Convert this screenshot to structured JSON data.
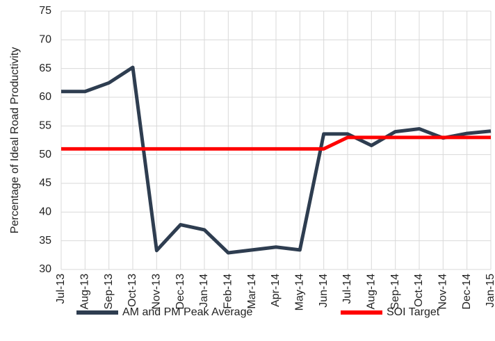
{
  "chart_data": {
    "type": "line",
    "y_label": "Percentage of Ideal Road Productivity",
    "categories": [
      "Jul-13",
      "Aug-13",
      "Sep-13",
      "Oct-13",
      "Nov-13",
      "Dec-13",
      "Jan-14",
      "Feb-14",
      "Mar-14",
      "Apr-14",
      "May-14",
      "Jun-14",
      "Jul-14",
      "Aug-14",
      "Sep-14",
      "Oct-14",
      "Nov-14",
      "Dec-14",
      "Jan-15"
    ],
    "series": [
      {
        "name": "AM and PM Peak Average",
        "color": "#2e3d50",
        "values": [
          61,
          61,
          62.5,
          65.2,
          33.3,
          37.8,
          36.9,
          32.9,
          33.4,
          33.9,
          33.4,
          53.6,
          53.6,
          51.6,
          54,
          54.5,
          52.9,
          53.7,
          54.1
        ]
      },
      {
        "name": "SOI Target",
        "color": "#ff0000",
        "values": [
          51,
          51,
          51,
          51,
          51,
          51,
          51,
          51,
          51,
          51,
          51,
          51,
          53,
          53,
          53,
          53,
          53,
          53,
          53
        ]
      }
    ],
    "ylim": [
      30,
      75
    ],
    "yticks": [
      30,
      35,
      40,
      45,
      50,
      55,
      60,
      65,
      70,
      75
    ],
    "grid": true
  }
}
